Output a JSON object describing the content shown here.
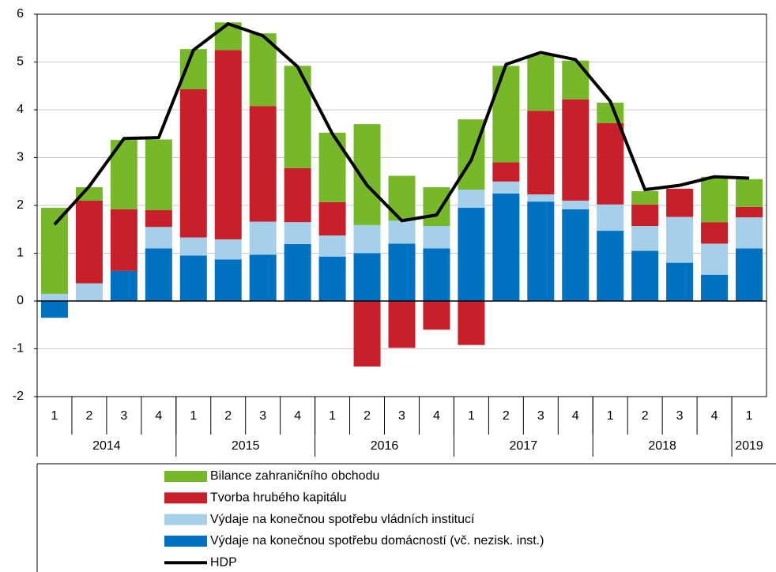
{
  "chart_data": {
    "type": "bar",
    "stacked": true,
    "groups": [
      {
        "label": "2014",
        "categories": [
          "1",
          "2",
          "3",
          "4"
        ]
      },
      {
        "label": "2015",
        "categories": [
          "1",
          "2",
          "3",
          "4"
        ]
      },
      {
        "label": "2016",
        "categories": [
          "1",
          "2",
          "3",
          "4"
        ]
      },
      {
        "label": "2017",
        "categories": [
          "1",
          "2",
          "3",
          "4"
        ]
      },
      {
        "label": "2018",
        "categories": [
          "1",
          "2",
          "3",
          "4"
        ]
      },
      {
        "label": "2019",
        "categories": [
          "1"
        ]
      }
    ],
    "series": [
      {
        "name": "Bilance zahraničního obchodu",
        "type": "bar",
        "color": "#77b82a",
        "values": [
          1.8,
          0.28,
          1.45,
          1.48,
          0.84,
          0.58,
          1.52,
          2.14,
          1.45,
          2.11,
          0.94,
          0.81,
          1.47,
          2.02,
          1.17,
          0.81,
          0.43,
          0.28,
          0,
          0.95,
          0.58
        ]
      },
      {
        "name": "Tvorba hrubého kapitálu",
        "type": "bar",
        "color": "#c8202b",
        "values": [
          0,
          1.73,
          1.29,
          0.35,
          3.1,
          3.96,
          2.42,
          1.13,
          0.7,
          -1.37,
          -0.98,
          -0.6,
          -0.92,
          0.4,
          1.75,
          2.12,
          1.7,
          0.45,
          0.59,
          0.45,
          0.22
        ]
      },
      {
        "name": "Výdaje na konečnou spotřebu vládních institucí",
        "type": "bar",
        "color": "#a6cfe9",
        "values": [
          0.15,
          0.37,
          0,
          0.45,
          0.38,
          0.42,
          0.69,
          0.46,
          0.44,
          0.59,
          0.48,
          0.47,
          0.38,
          0.25,
          0.15,
          0.18,
          0.55,
          0.52,
          0.96,
          0.65,
          0.65
        ]
      },
      {
        "name": "Výdaje na konečnou spotřebu domácností (vč. nezisk. inst.)",
        "type": "bar",
        "color": "#0070c0",
        "values": [
          -0.35,
          0,
          0.63,
          1.1,
          0.95,
          0.87,
          0.97,
          1.19,
          0.93,
          1.0,
          1.2,
          1.1,
          1.95,
          2.25,
          2.08,
          1.92,
          1.47,
          1.05,
          0.8,
          0.55,
          1.1
        ]
      },
      {
        "name": "HDP",
        "type": "line",
        "color": "#000000",
        "values": [
          1.6,
          2.4,
          3.4,
          3.42,
          5.25,
          5.8,
          5.55,
          4.9,
          3.5,
          2.42,
          1.68,
          1.8,
          2.95,
          4.95,
          5.2,
          5.05,
          4.18,
          2.33,
          2.42,
          2.6,
          2.57
        ]
      }
    ],
    "ylim": [
      -2,
      6
    ],
    "yticks": [
      -2,
      -1,
      0,
      1,
      2,
      3,
      4,
      5,
      6
    ],
    "grid": true
  }
}
